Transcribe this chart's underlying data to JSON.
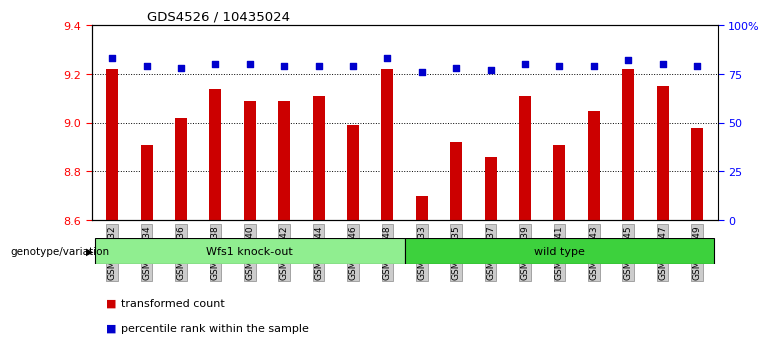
{
  "title": "GDS4526 / 10435024",
  "categories": [
    "GSM825432",
    "GSM825434",
    "GSM825436",
    "GSM825438",
    "GSM825440",
    "GSM825442",
    "GSM825444",
    "GSM825446",
    "GSM825448",
    "GSM825433",
    "GSM825435",
    "GSM825437",
    "GSM825439",
    "GSM825441",
    "GSM825443",
    "GSM825445",
    "GSM825447",
    "GSM825449"
  ],
  "bar_values": [
    9.22,
    8.91,
    9.02,
    9.14,
    9.09,
    9.09,
    9.11,
    8.99,
    9.22,
    8.7,
    8.92,
    8.86,
    9.11,
    8.91,
    9.05,
    9.22,
    9.15,
    8.98
  ],
  "dot_values": [
    83,
    79,
    78,
    80,
    80,
    79,
    79,
    79,
    83,
    76,
    78,
    77,
    80,
    79,
    79,
    82,
    80,
    79
  ],
  "bar_color": "#cc0000",
  "dot_color": "#0000cc",
  "ylim_left": [
    8.6,
    9.4
  ],
  "ylim_right": [
    0,
    100
  ],
  "yticks_left": [
    8.6,
    8.8,
    9.0,
    9.2,
    9.4
  ],
  "yticks_right": [
    0,
    25,
    50,
    75,
    100
  ],
  "ytick_labels_right": [
    "0",
    "25",
    "50",
    "75",
    "100%"
  ],
  "grid_values": [
    8.8,
    9.0,
    9.2
  ],
  "group1_label": "Wfs1 knock-out",
  "group2_label": "wild type",
  "group1_color": "#90ee90",
  "group2_color": "#3dd13d",
  "n_group1": 9,
  "n_group2": 9,
  "genotype_label": "genotype/variation",
  "legend_bar_label": "transformed count",
  "legend_dot_label": "percentile rank within the sample",
  "tick_bg_color": "#cccccc"
}
